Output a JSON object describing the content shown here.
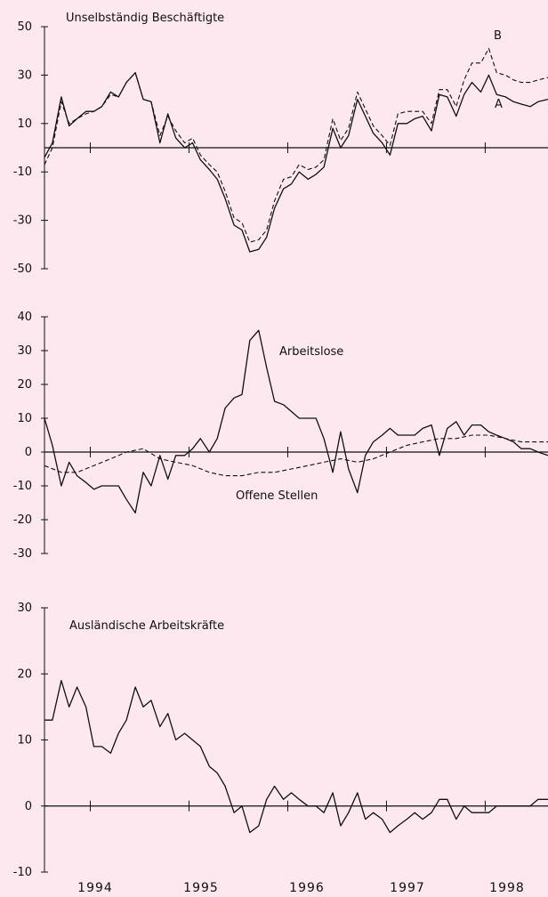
{
  "colors": {
    "background": "#fce8ee",
    "ink": "#111111"
  },
  "years": [
    "1994",
    "1995",
    "1996",
    "1997",
    "1998"
  ],
  "chart_data": [
    {
      "type": "line",
      "title": "Unselbständig Beschäftigte",
      "ylim": [
        -50,
        50
      ],
      "yticks": [
        50,
        30,
        10,
        -10,
        -30,
        -50
      ],
      "x_range": [
        1993.5,
        1998.6
      ],
      "grid": false,
      "series": [
        {
          "name": "A",
          "style": "solid",
          "x": [
            1993.5,
            1993.58,
            1993.67,
            1993.75,
            1993.83,
            1993.92,
            1994.0,
            1994.08,
            1994.17,
            1994.25,
            1994.33,
            1994.42,
            1994.5,
            1994.58,
            1994.67,
            1994.75,
            1994.83,
            1994.92,
            1995.0,
            1995.08,
            1995.17,
            1995.25,
            1995.33,
            1995.42,
            1995.5,
            1995.58,
            1995.67,
            1995.75,
            1995.83,
            1995.92,
            1996.0,
            1996.08,
            1996.17,
            1996.25,
            1996.33,
            1996.42,
            1996.5,
            1996.58,
            1996.67,
            1996.75,
            1996.83,
            1996.92,
            1997.0,
            1997.08,
            1997.17,
            1997.25,
            1997.33,
            1997.42,
            1997.5,
            1997.58,
            1997.67,
            1997.75,
            1997.83,
            1997.92,
            1998.0,
            1998.08,
            1998.17,
            1998.25,
            1998.33,
            1998.42,
            1998.5,
            1998.6
          ],
          "values": [
            -4,
            2,
            21,
            9,
            12,
            15,
            15,
            17,
            23,
            21,
            27,
            31,
            20,
            19,
            2,
            14,
            4,
            0,
            2,
            -5,
            -9,
            -13,
            -21,
            -32,
            -34,
            -43,
            -42,
            -37,
            -25,
            -17,
            -15,
            -10,
            -13,
            -11,
            -8,
            8,
            0,
            5,
            20,
            13,
            6,
            2,
            -3,
            10,
            10,
            12,
            13,
            7,
            22,
            21,
            13,
            22,
            27,
            23,
            30,
            22,
            21,
            19,
            18,
            17,
            19,
            20
          ]
        },
        {
          "name": "B",
          "style": "dashed",
          "x": [
            1993.5,
            1993.58,
            1993.67,
            1993.75,
            1993.83,
            1993.92,
            1994.0,
            1994.08,
            1994.17,
            1994.25,
            1994.33,
            1994.42,
            1994.5,
            1994.58,
            1994.67,
            1994.75,
            1994.83,
            1994.92,
            1995.0,
            1995.08,
            1995.17,
            1995.25,
            1995.33,
            1995.42,
            1995.5,
            1995.58,
            1995.67,
            1995.75,
            1995.83,
            1995.92,
            1996.0,
            1996.08,
            1996.17,
            1996.25,
            1996.33,
            1996.42,
            1996.5,
            1996.58,
            1996.67,
            1996.75,
            1996.83,
            1996.92,
            1997.0,
            1997.08,
            1997.17,
            1997.25,
            1997.33,
            1997.42,
            1997.5,
            1997.58,
            1997.67,
            1997.75,
            1997.83,
            1997.92,
            1998.0,
            1998.08,
            1998.17,
            1998.25,
            1998.33,
            1998.42,
            1998.5,
            1998.6
          ],
          "values": [
            -7,
            0,
            19,
            10,
            12,
            14,
            15,
            17,
            22,
            21,
            27,
            31,
            20,
            19,
            5,
            13,
            7,
            2,
            4,
            -3,
            -7,
            -10,
            -18,
            -29,
            -31,
            -39,
            -38,
            -34,
            -22,
            -13,
            -12,
            -7,
            -9,
            -8,
            -5,
            12,
            3,
            8,
            23,
            16,
            9,
            5,
            1,
            14,
            15,
            15,
            15,
            10,
            24,
            24,
            17,
            28,
            35,
            35,
            41,
            31,
            30,
            28,
            27,
            27,
            28,
            29
          ]
        }
      ],
      "annotations": [
        "B",
        "A"
      ]
    },
    {
      "type": "line",
      "title": "",
      "ylim": [
        -30,
        40
      ],
      "yticks": [
        40,
        30,
        20,
        10,
        0,
        -10,
        -20,
        -30
      ],
      "x_range": [
        1993.5,
        1998.6
      ],
      "grid": false,
      "series": [
        {
          "name": "Arbeitslose",
          "style": "solid",
          "x": [
            1993.5,
            1993.58,
            1993.67,
            1993.75,
            1993.83,
            1993.92,
            1994.0,
            1994.08,
            1994.17,
            1994.25,
            1994.33,
            1994.42,
            1994.5,
            1994.58,
            1994.67,
            1994.75,
            1994.83,
            1994.92,
            1995.0,
            1995.08,
            1995.17,
            1995.25,
            1995.33,
            1995.42,
            1995.5,
            1995.58,
            1995.67,
            1995.75,
            1995.83,
            1995.92,
            1996.0,
            1996.08,
            1996.17,
            1996.25,
            1996.33,
            1996.42,
            1996.5,
            1996.58,
            1996.67,
            1996.75,
            1996.83,
            1996.92,
            1997.0,
            1997.08,
            1997.17,
            1997.25,
            1997.33,
            1997.42,
            1997.5,
            1997.58,
            1997.67,
            1997.75,
            1997.83,
            1997.92,
            1998.0,
            1998.08,
            1998.17,
            1998.25,
            1998.33,
            1998.42,
            1998.5,
            1998.6
          ],
          "values": [
            10,
            2,
            -10,
            -3,
            -7,
            -9,
            -11,
            -10,
            -10,
            -10,
            -14,
            -18,
            -6,
            -10,
            -1,
            -8,
            -1,
            -1,
            1,
            4,
            0,
            4,
            13,
            16,
            17,
            33,
            36,
            25,
            15,
            14,
            12,
            10,
            10,
            10,
            4,
            -6,
            6,
            -5,
            -12,
            -1,
            3,
            5,
            7,
            5,
            5,
            5,
            7,
            8,
            -1,
            7,
            9,
            5,
            8,
            8,
            6,
            5,
            4,
            3,
            1,
            1,
            0,
            -1
          ]
        },
        {
          "name": "Offene Stellen",
          "style": "dashed",
          "x": [
            1993.5,
            1993.67,
            1993.83,
            1994.0,
            1994.17,
            1994.33,
            1994.5,
            1994.67,
            1994.83,
            1995.0,
            1995.17,
            1995.33,
            1995.5,
            1995.67,
            1995.83,
            1996.0,
            1996.17,
            1996.33,
            1996.5,
            1996.67,
            1996.83,
            1997.0,
            1997.17,
            1997.33,
            1997.5,
            1997.67,
            1997.83,
            1998.0,
            1998.17,
            1998.33,
            1998.5,
            1998.6
          ],
          "values": [
            -4,
            -6,
            -6,
            -4,
            -2,
            0,
            1,
            -2,
            -3,
            -4,
            -6,
            -7,
            -7,
            -6,
            -6,
            -5,
            -4,
            -3,
            -2,
            -3,
            -2,
            0,
            2,
            3,
            4,
            4,
            5,
            5,
            4,
            3,
            3,
            3
          ]
        }
      ],
      "annotations": [
        "Arbeitslose",
        "Offene Stellen"
      ]
    },
    {
      "type": "line",
      "title": "Ausländische Arbeitskräfte",
      "ylim": [
        -10,
        30
      ],
      "yticks": [
        30,
        20,
        10,
        0,
        -10
      ],
      "x_range": [
        1993.5,
        1998.6
      ],
      "grid": false,
      "series": [
        {
          "name": "",
          "style": "solid",
          "x": [
            1993.5,
            1993.58,
            1993.67,
            1993.75,
            1993.83,
            1993.92,
            1994.0,
            1994.08,
            1994.17,
            1994.25,
            1994.33,
            1994.42,
            1994.5,
            1994.58,
            1994.67,
            1994.75,
            1994.83,
            1994.92,
            1995.0,
            1995.08,
            1995.17,
            1995.25,
            1995.33,
            1995.42,
            1995.5,
            1995.58,
            1995.67,
            1995.75,
            1995.83,
            1995.92,
            1996.0,
            1996.08,
            1996.17,
            1996.25,
            1996.33,
            1996.42,
            1996.5,
            1996.58,
            1996.67,
            1996.75,
            1996.83,
            1996.92,
            1997.0,
            1997.08,
            1997.17,
            1997.25,
            1997.33,
            1997.42,
            1997.5,
            1997.58,
            1997.67,
            1997.75,
            1997.83,
            1997.92,
            1998.0,
            1998.08,
            1998.17,
            1998.25,
            1998.33,
            1998.42,
            1998.5,
            1998.6
          ],
          "values": [
            13,
            13,
            19,
            15,
            18,
            15,
            9,
            9,
            8,
            11,
            13,
            18,
            15,
            16,
            12,
            14,
            10,
            11,
            10,
            9,
            6,
            5,
            3,
            -1,
            0,
            -4,
            -3,
            1,
            3,
            1,
            2,
            1,
            0,
            0,
            -1,
            2,
            -3,
            -1,
            2,
            -2,
            -1,
            -2,
            -4,
            -3,
            -2,
            -1,
            -2,
            -1,
            1,
            1,
            -2,
            0,
            -1,
            -1,
            -1,
            0,
            0,
            0,
            0,
            0,
            1,
            1
          ]
        }
      ],
      "annotations": []
    }
  ]
}
